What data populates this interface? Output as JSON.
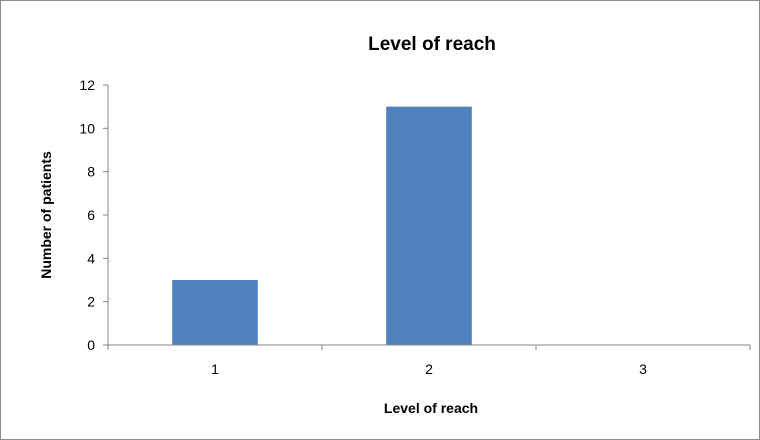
{
  "chart_data": {
    "type": "bar",
    "title": "Level of reach",
    "xlabel": "Level of reach",
    "ylabel": "Number of patients",
    "categories": [
      "1",
      "2",
      "3"
    ],
    "values": [
      3,
      11,
      0
    ],
    "ylim": [
      0,
      12
    ],
    "yticks": [
      "0",
      "2",
      "4",
      "6",
      "8",
      "10",
      "12"
    ],
    "grid": false,
    "legend": "none",
    "bar_color": "#4f81bd",
    "axis_color": "#868686"
  }
}
